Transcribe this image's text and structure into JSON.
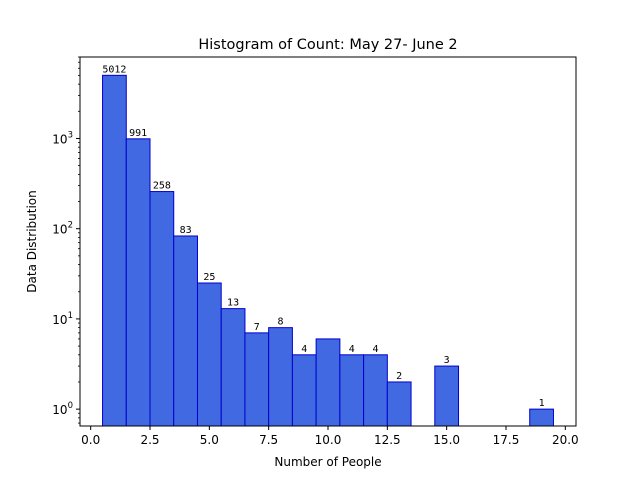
{
  "chart_data": {
    "type": "bar",
    "title": "Histogram of Count: May 27- June 2",
    "xlabel": "Number of People",
    "ylabel": "Data Distribution",
    "yscale": "log",
    "xlim": [
      -0.45,
      20.45
    ],
    "ylim": [
      0.65,
      8000
    ],
    "x_ticks": [
      0.0,
      2.5,
      5.0,
      7.5,
      10.0,
      12.5,
      15.0,
      17.5,
      20.0
    ],
    "x_tick_labels": [
      "0.0",
      "2.5",
      "5.0",
      "7.5",
      "10.0",
      "12.5",
      "15.0",
      "17.5",
      "20.0"
    ],
    "y_ticks": [
      {
        "value": 1,
        "base": "10",
        "exp": "0"
      },
      {
        "value": 10,
        "base": "10",
        "exp": "1"
      },
      {
        "value": 100,
        "base": "10",
        "exp": "2"
      },
      {
        "value": 1000,
        "base": "10",
        "exp": "3"
      }
    ],
    "bin_width": 1,
    "bins": [
      {
        "center": 1,
        "value": 5012,
        "label": "5012"
      },
      {
        "center": 2,
        "value": 991,
        "label": "991"
      },
      {
        "center": 3,
        "value": 258,
        "label": "258"
      },
      {
        "center": 4,
        "value": 83,
        "label": "83"
      },
      {
        "center": 5,
        "value": 25,
        "label": "25"
      },
      {
        "center": 6,
        "value": 13,
        "label": "13"
      },
      {
        "center": 7,
        "value": 7,
        "label": "7"
      },
      {
        "center": 8,
        "value": 8,
        "label": "8"
      },
      {
        "center": 9,
        "value": 4,
        "label": "4"
      },
      {
        "center": 10,
        "value": 6,
        "label": ""
      },
      {
        "center": 11,
        "value": 4,
        "label": "4"
      },
      {
        "center": 12,
        "value": 4,
        "label": "4"
      },
      {
        "center": 13,
        "value": 2,
        "label": "2"
      },
      {
        "center": 15,
        "value": 3,
        "label": "3"
      },
      {
        "center": 19,
        "value": 1,
        "label": "1"
      }
    ],
    "colors": {
      "bar_fill": "#4169e1",
      "bar_edge": "#0000cd"
    },
    "grid": false,
    "legend": "none"
  }
}
